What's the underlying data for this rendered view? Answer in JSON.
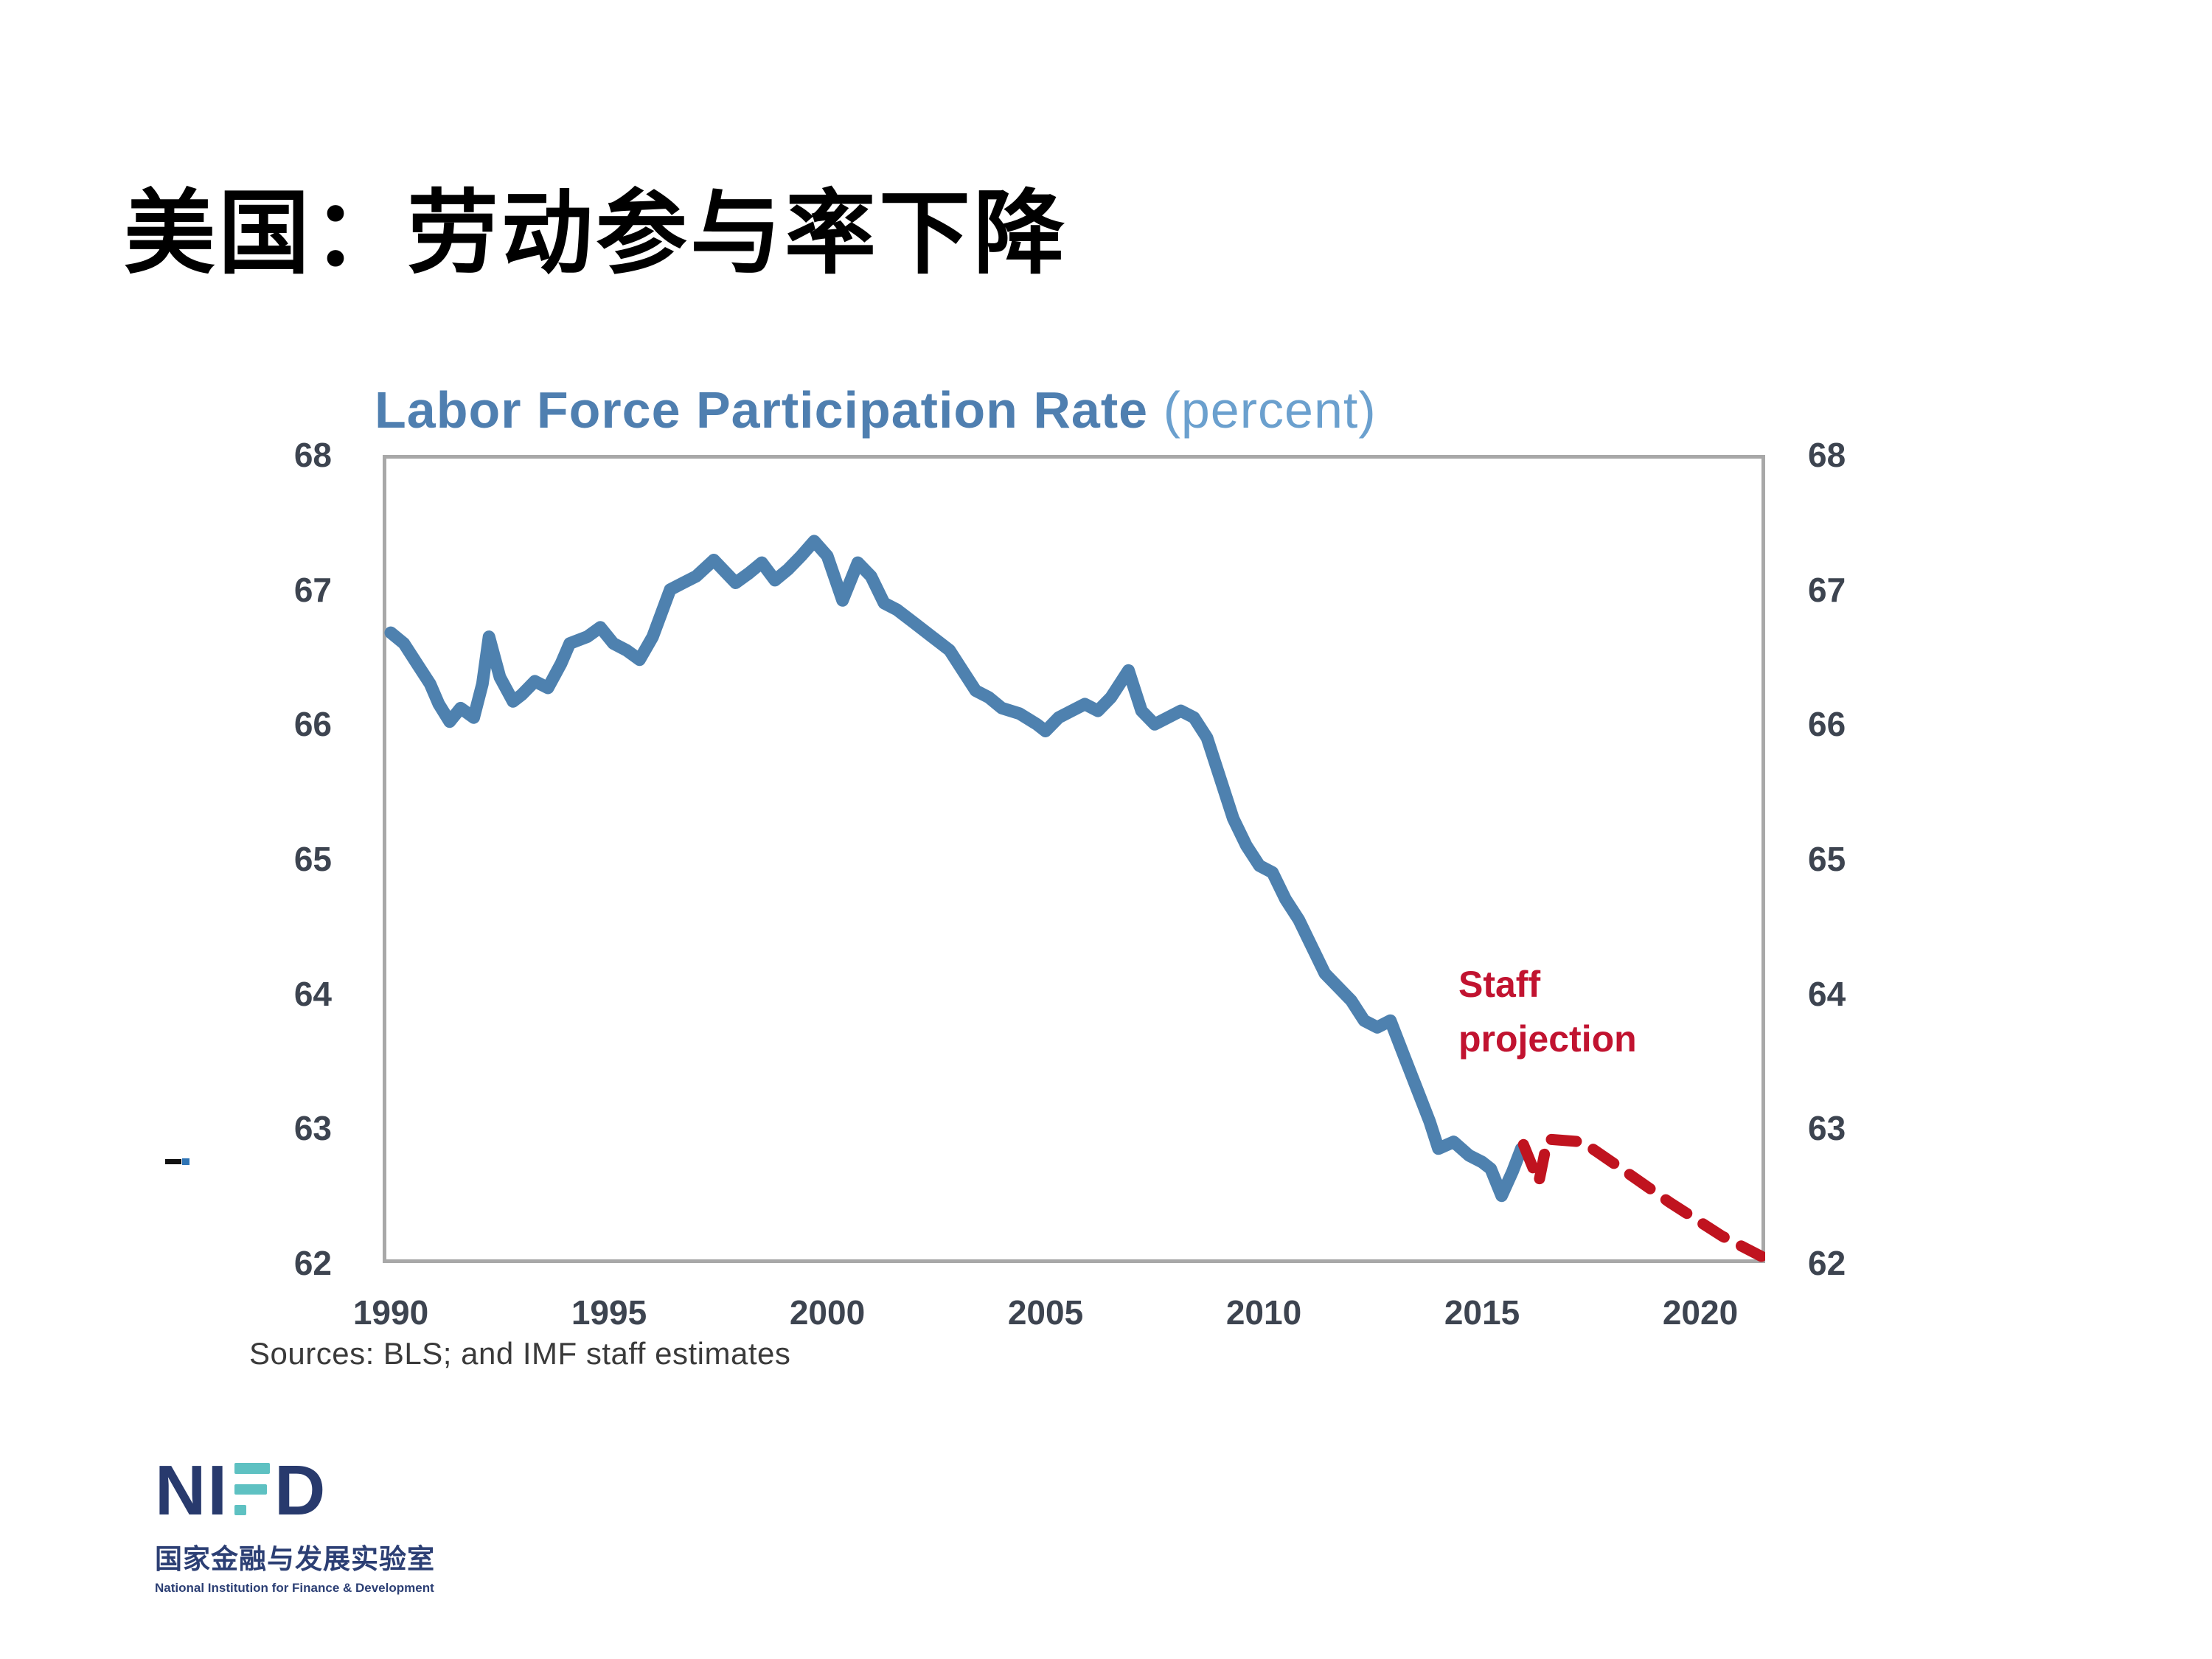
{
  "slide": {
    "title": "美国：劳动参与率下降"
  },
  "chart": {
    "title_main": "Labor Force Participation Rate",
    "title_paren": "(percent)",
    "annotation_line1": "Staff",
    "annotation_line2": "projection",
    "annotation_color": "#c11330",
    "source": "Sources: BLS; and IMF staff estimates",
    "frame_color": "#a8a8a8"
  },
  "chart_data": {
    "type": "line",
    "title": "Labor Force Participation Rate (percent)",
    "xlabel": "",
    "ylabel": "percent",
    "xlim": [
      1989.8,
      2021.5
    ],
    "ylim": [
      62,
      68
    ],
    "grid": false,
    "legend_position": "none",
    "x_ticks": [
      1990,
      1995,
      2000,
      2005,
      2010,
      2015,
      2020
    ],
    "y_ticks": [
      68,
      67,
      66,
      65,
      64,
      63,
      62
    ],
    "y_axis_sides": [
      "left",
      "right"
    ],
    "series": [
      {
        "name": "Labor force participation rate (historical)",
        "color": "#4e81af",
        "style": "solid",
        "points": [
          [
            1990.0,
            66.68
          ],
          [
            1990.3,
            66.6
          ],
          [
            1990.6,
            66.45
          ],
          [
            1990.9,
            66.3
          ],
          [
            1991.1,
            66.15
          ],
          [
            1991.35,
            66.02
          ],
          [
            1991.6,
            66.12
          ],
          [
            1991.9,
            66.05
          ],
          [
            1992.1,
            66.3
          ],
          [
            1992.25,
            66.65
          ],
          [
            1992.5,
            66.35
          ],
          [
            1992.8,
            66.17
          ],
          [
            1993.0,
            66.22
          ],
          [
            1993.3,
            66.32
          ],
          [
            1993.6,
            66.27
          ],
          [
            1993.9,
            66.45
          ],
          [
            1994.1,
            66.6
          ],
          [
            1994.5,
            66.65
          ],
          [
            1994.8,
            66.72
          ],
          [
            1995.1,
            66.6
          ],
          [
            1995.4,
            66.55
          ],
          [
            1995.7,
            66.48
          ],
          [
            1996.0,
            66.65
          ],
          [
            1996.4,
            67.0
          ],
          [
            1996.7,
            67.05
          ],
          [
            1997.0,
            67.1
          ],
          [
            1997.4,
            67.22
          ],
          [
            1997.9,
            67.05
          ],
          [
            1998.2,
            67.12
          ],
          [
            1998.5,
            67.2
          ],
          [
            1998.8,
            67.07
          ],
          [
            1999.1,
            67.15
          ],
          [
            1999.4,
            67.25
          ],
          [
            1999.7,
            67.36
          ],
          [
            2000.0,
            67.25
          ],
          [
            2000.35,
            66.92
          ],
          [
            2000.7,
            67.2
          ],
          [
            2001.0,
            67.1
          ],
          [
            2001.3,
            66.9
          ],
          [
            2001.6,
            66.85
          ],
          [
            2002.0,
            66.75
          ],
          [
            2002.4,
            66.65
          ],
          [
            2002.8,
            66.55
          ],
          [
            2003.1,
            66.4
          ],
          [
            2003.4,
            66.25
          ],
          [
            2003.7,
            66.2
          ],
          [
            2004.0,
            66.12
          ],
          [
            2004.4,
            66.08
          ],
          [
            2004.8,
            66.0
          ],
          [
            2005.0,
            65.95
          ],
          [
            2005.3,
            66.05
          ],
          [
            2005.6,
            66.1
          ],
          [
            2005.9,
            66.15
          ],
          [
            2006.2,
            66.1
          ],
          [
            2006.5,
            66.2
          ],
          [
            2006.9,
            66.4
          ],
          [
            2007.2,
            66.1
          ],
          [
            2007.5,
            66.0
          ],
          [
            2007.8,
            66.05
          ],
          [
            2008.1,
            66.1
          ],
          [
            2008.4,
            66.05
          ],
          [
            2008.7,
            65.9
          ],
          [
            2009.0,
            65.6
          ],
          [
            2009.3,
            65.3
          ],
          [
            2009.6,
            65.1
          ],
          [
            2009.9,
            64.95
          ],
          [
            2010.2,
            64.9
          ],
          [
            2010.5,
            64.7
          ],
          [
            2010.8,
            64.55
          ],
          [
            2011.1,
            64.35
          ],
          [
            2011.4,
            64.15
          ],
          [
            2011.7,
            64.05
          ],
          [
            2012.0,
            63.95
          ],
          [
            2012.3,
            63.8
          ],
          [
            2012.6,
            63.75
          ],
          [
            2012.9,
            63.8
          ],
          [
            2013.2,
            63.55
          ],
          [
            2013.5,
            63.3
          ],
          [
            2013.8,
            63.05
          ],
          [
            2014.0,
            62.85
          ],
          [
            2014.35,
            62.9
          ],
          [
            2014.7,
            62.8
          ],
          [
            2015.0,
            62.75
          ],
          [
            2015.2,
            62.7
          ],
          [
            2015.45,
            62.5
          ],
          [
            2015.7,
            62.68
          ],
          [
            2015.9,
            62.85
          ]
        ]
      },
      {
        "name": "Staff projection",
        "color": "#c0131f",
        "style": "dashed",
        "points": [
          [
            2015.95,
            62.88
          ],
          [
            2016.3,
            62.6
          ],
          [
            2016.5,
            62.92
          ],
          [
            2017.3,
            62.9
          ],
          [
            2018.2,
            62.7
          ],
          [
            2019.3,
            62.45
          ],
          [
            2020.5,
            62.2
          ],
          [
            2021.4,
            62.05
          ]
        ]
      }
    ]
  },
  "logo": {
    "wordmark_left": "NI",
    "wordmark_right": "D",
    "cn_name": "国家金融与发展实验室",
    "en_name": "National Institution for Finance & Development"
  }
}
